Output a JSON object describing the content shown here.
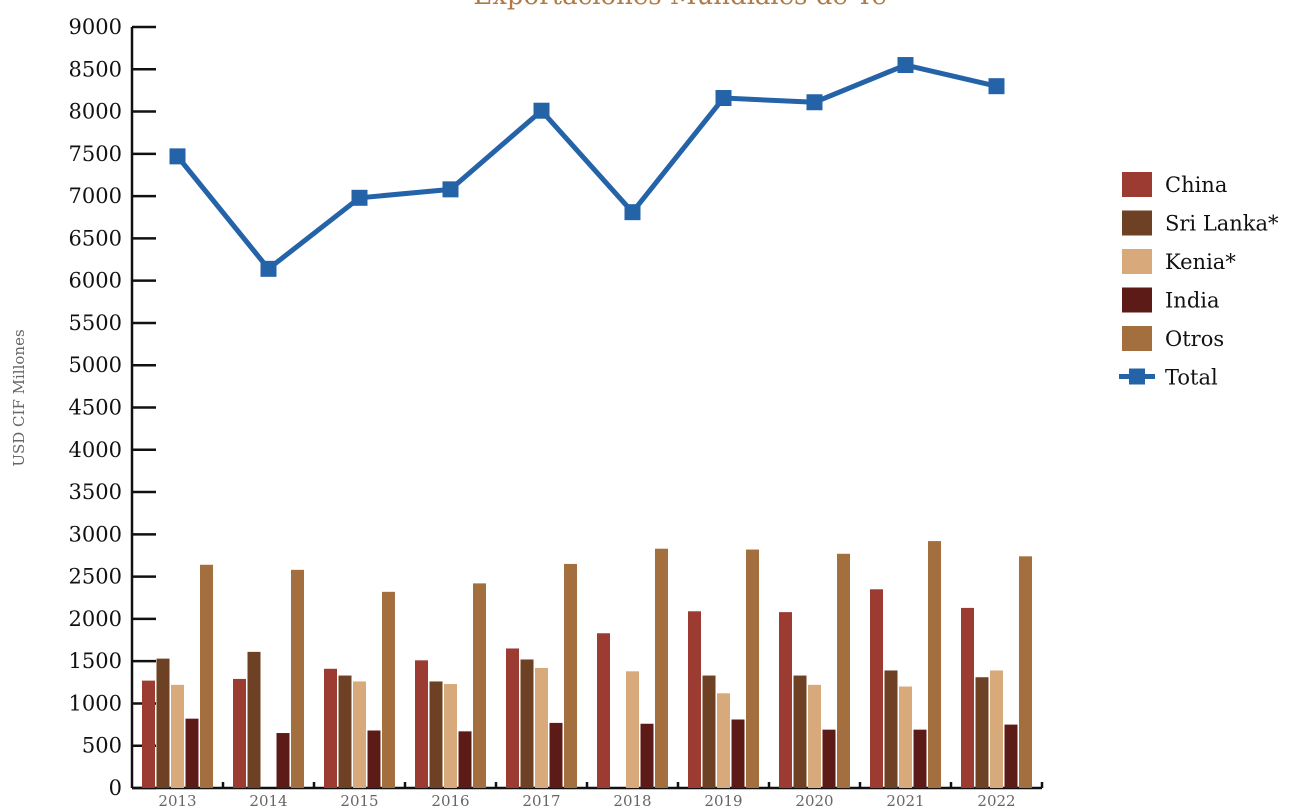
{
  "chart_data": {
    "type": "bar",
    "title": "Exportaciones Mundiales de Té",
    "ylabel": "USD CIF Millones",
    "xlabel": "",
    "ylim": [
      0,
      9000
    ],
    "yticks": [
      0,
      500,
      1000,
      1500,
      2000,
      2500,
      3000,
      3500,
      4000,
      4500,
      5000,
      5500,
      6000,
      6500,
      7000,
      7500,
      8000,
      8500,
      9000
    ],
    "categories": [
      "2013",
      "2014",
      "2015",
      "2016",
      "2017",
      "2018",
      "2019",
      "2020",
      "2021",
      "2022"
    ],
    "series": [
      {
        "name": "China",
        "kind": "bar",
        "color": "#9b3b32",
        "values": [
          1270,
          1290,
          1410,
          1510,
          1650,
          1830,
          2090,
          2080,
          2350,
          2130
        ]
      },
      {
        "name": "Sri Lanka*",
        "kind": "bar",
        "color": "#6e4124",
        "values": [
          1530,
          1610,
          1330,
          1260,
          1520,
          null,
          1330,
          1330,
          1390,
          1310
        ]
      },
      {
        "name": "Kenia*",
        "kind": "bar",
        "color": "#d8a97a",
        "values": [
          1220,
          null,
          1260,
          1230,
          1420,
          1380,
          1120,
          1220,
          1200,
          1390
        ]
      },
      {
        "name": "India",
        "kind": "bar",
        "color": "#5c1b16",
        "values": [
          820,
          650,
          680,
          670,
          770,
          760,
          810,
          690,
          690,
          750
        ]
      },
      {
        "name": "Otros",
        "kind": "bar",
        "color": "#a36f3e",
        "values": [
          2640,
          2580,
          2320,
          2420,
          2650,
          2830,
          2820,
          2770,
          2920,
          2740
        ]
      },
      {
        "name": "Total",
        "kind": "line",
        "color": "#2563a8",
        "values": [
          7470,
          6140,
          6980,
          7080,
          8010,
          6810,
          8160,
          8110,
          8550,
          8300
        ]
      }
    ],
    "legend_position": "right",
    "grid": false
  }
}
